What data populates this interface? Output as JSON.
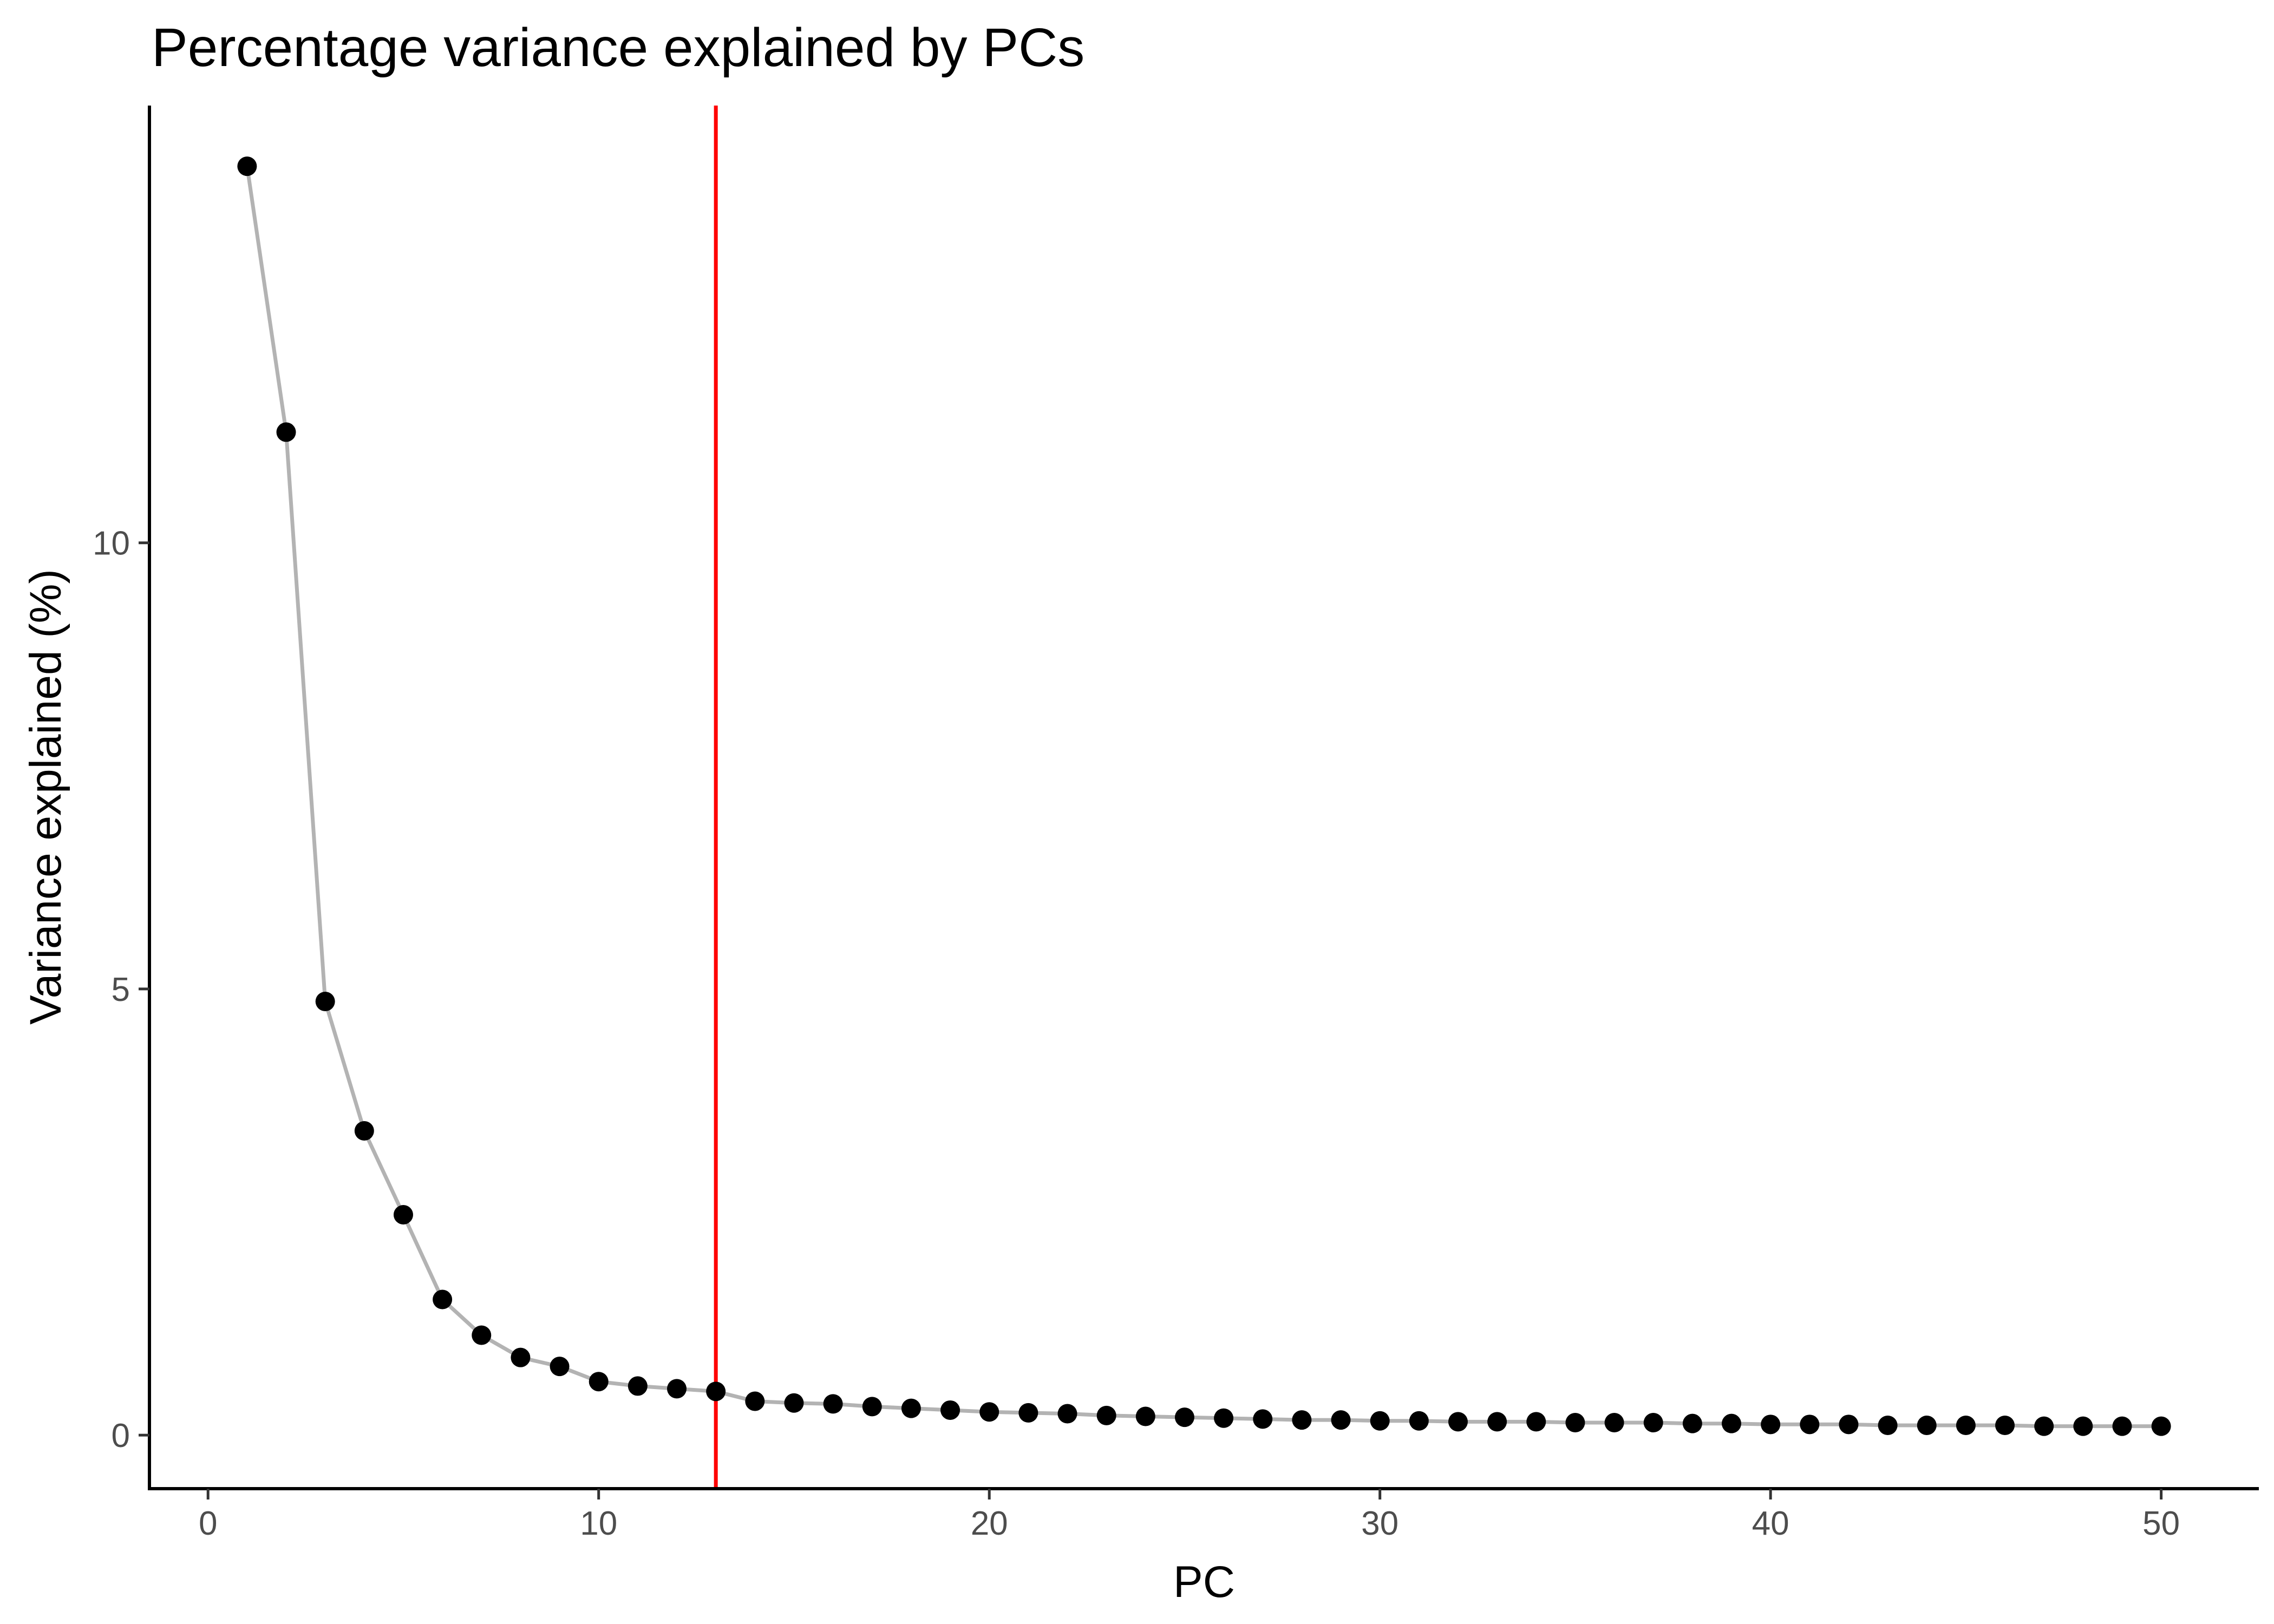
{
  "chart_data": {
    "type": "line",
    "title": "Percentage variance explained by PCs",
    "xlabel": "PC",
    "ylabel": "Variance explained (%)",
    "xlim": [
      -1.5,
      52.5
    ],
    "ylim": [
      -0.6,
      14.9
    ],
    "x_ticks": [
      0,
      10,
      20,
      30,
      40,
      50
    ],
    "y_ticks": [
      0,
      5,
      10
    ],
    "grid": false,
    "legend": "none",
    "reference_line": {
      "orientation": "vertical",
      "x": 13,
      "color": "#ff0000"
    },
    "series": [
      {
        "line_color": "#b3b3b3",
        "point_color": "#000000",
        "x": [
          1,
          2,
          3,
          4,
          5,
          6,
          7,
          8,
          9,
          10,
          11,
          12,
          13,
          14,
          15,
          16,
          17,
          18,
          19,
          20,
          21,
          22,
          23,
          24,
          25,
          26,
          27,
          28,
          29,
          30,
          31,
          32,
          33,
          34,
          35,
          36,
          37,
          38,
          39,
          40,
          41,
          42,
          43,
          44,
          45,
          46,
          47,
          48,
          49,
          50
        ],
        "values": [
          14.22,
          11.24,
          4.86,
          3.41,
          2.47,
          1.52,
          1.12,
          0.87,
          0.77,
          0.6,
          0.55,
          0.52,
          0.49,
          0.38,
          0.36,
          0.35,
          0.32,
          0.3,
          0.28,
          0.26,
          0.25,
          0.24,
          0.22,
          0.21,
          0.2,
          0.19,
          0.18,
          0.17,
          0.17,
          0.16,
          0.16,
          0.15,
          0.15,
          0.15,
          0.14,
          0.14,
          0.14,
          0.13,
          0.13,
          0.12,
          0.12,
          0.12,
          0.11,
          0.11,
          0.11,
          0.11,
          0.1,
          0.1,
          0.1,
          0.1
        ]
      }
    ]
  }
}
